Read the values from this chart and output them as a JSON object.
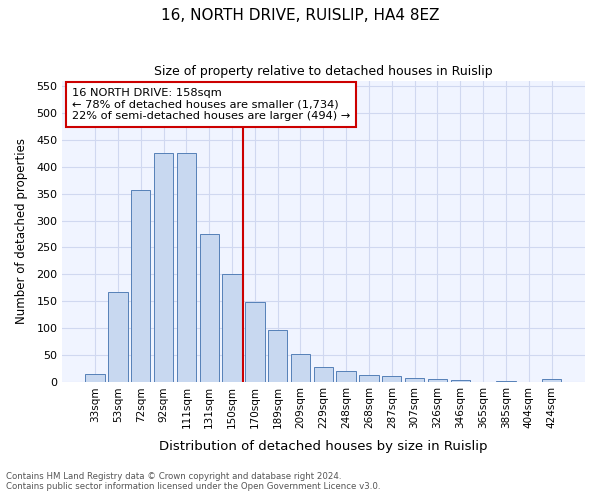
{
  "title1": "16, NORTH DRIVE, RUISLIP, HA4 8EZ",
  "title2": "Size of property relative to detached houses in Ruislip",
  "xlabel": "Distribution of detached houses by size in Ruislip",
  "ylabel": "Number of detached properties",
  "categories": [
    "33sqm",
    "53sqm",
    "72sqm",
    "92sqm",
    "111sqm",
    "131sqm",
    "150sqm",
    "170sqm",
    "189sqm",
    "209sqm",
    "229sqm",
    "248sqm",
    "268sqm",
    "287sqm",
    "307sqm",
    "326sqm",
    "346sqm",
    "365sqm",
    "385sqm",
    "404sqm",
    "424sqm"
  ],
  "values": [
    15,
    168,
    357,
    425,
    425,
    275,
    200,
    148,
    96,
    53,
    28,
    20,
    13,
    12,
    8,
    5,
    3,
    0,
    2,
    0,
    5
  ],
  "bar_color": "#c8d8f0",
  "bar_edge_color": "#5580b8",
  "vline_x": 6.5,
  "vline_color": "#cc0000",
  "annotation_line1": "16 NORTH DRIVE: 158sqm",
  "annotation_line2": "← 78% of detached houses are smaller (1,734)",
  "annotation_line3": "22% of semi-detached houses are larger (494) →",
  "annotation_box_edge": "#cc0000",
  "ylim": [
    0,
    560
  ],
  "yticks": [
    0,
    50,
    100,
    150,
    200,
    250,
    300,
    350,
    400,
    450,
    500,
    550
  ],
  "footer1": "Contains HM Land Registry data © Crown copyright and database right 2024.",
  "footer2": "Contains public sector information licensed under the Open Government Licence v3.0.",
  "bg_color": "#ffffff",
  "plot_bg_color": "#f0f4ff",
  "grid_color": "#d0d8f0"
}
